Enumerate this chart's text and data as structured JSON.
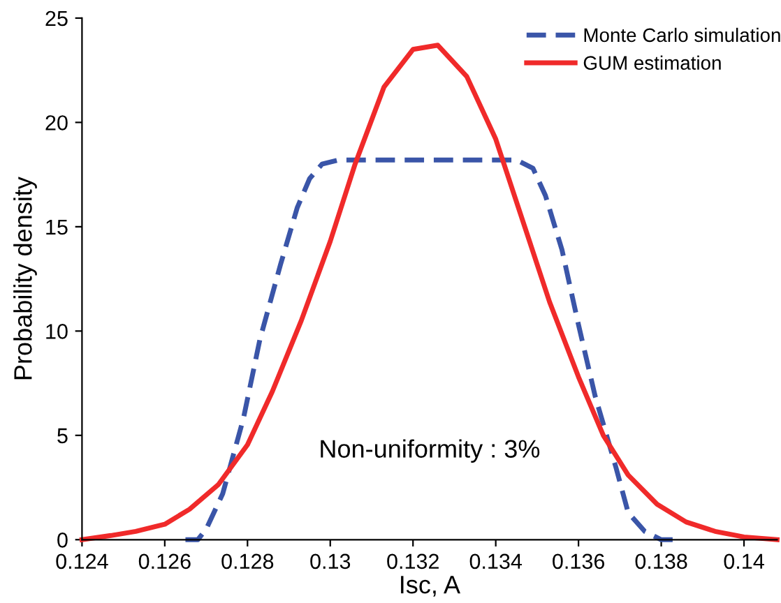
{
  "chart_data": {
    "type": "line",
    "xlabel": "Isc, A",
    "ylabel": "Probability density",
    "xlim": [
      0.124,
      0.1408
    ],
    "xticks": [
      {
        "value": 0.124,
        "label": "0.124"
      },
      {
        "value": 0.126,
        "label": "0.126"
      },
      {
        "value": 0.128,
        "label": "0.128"
      },
      {
        "value": 0.13,
        "label": "0.13"
      },
      {
        "value": 0.132,
        "label": "0.132"
      },
      {
        "value": 0.134,
        "label": "0.134"
      },
      {
        "value": 0.136,
        "label": "0.136"
      },
      {
        "value": 0.138,
        "label": "0.138"
      },
      {
        "value": 0.14,
        "label": "0.14"
      }
    ],
    "ylim": [
      0,
      25
    ],
    "yticks": [
      0,
      5,
      10,
      15,
      20,
      25
    ],
    "grid": false,
    "legend": "top right",
    "annotations": [
      "Non-uniformity : 3%"
    ],
    "series": [
      {
        "name": "Monte Carlo simulation",
        "color": "#3a55a8",
        "line_style": "dashed",
        "x": [
          0.1265,
          0.1268,
          0.127,
          0.1274,
          0.1279,
          0.1283,
          0.1288,
          0.1292,
          0.1295,
          0.1298,
          0.1302,
          0.1345,
          0.1349,
          0.1352,
          0.1356,
          0.136,
          0.1364,
          0.1369,
          0.1372,
          0.1376,
          0.138,
          0.1383
        ],
        "values": [
          0,
          0,
          0.5,
          2.2,
          5.8,
          9.6,
          13.2,
          15.9,
          17.3,
          18.0,
          18.2,
          18.2,
          17.8,
          16.5,
          13.9,
          10.3,
          6.9,
          3.5,
          1.3,
          0.4,
          0,
          0
        ]
      },
      {
        "name": "GUM estimation",
        "color": "#f02a2a",
        "line_style": "solid",
        "x": [
          0.124,
          0.1247,
          0.1253,
          0.126,
          0.1266,
          0.1273,
          0.128,
          0.1286,
          0.1293,
          0.13,
          0.1306,
          0.1313,
          0.132,
          0.1326,
          0.1333,
          0.134,
          0.1347,
          0.1353,
          0.136,
          0.1366,
          0.1372,
          0.1379,
          0.1386,
          0.1393,
          0.14,
          0.1408
        ],
        "values": [
          0,
          0.2,
          0.4,
          0.74,
          1.46,
          2.65,
          4.55,
          7.1,
          10.5,
          14.3,
          18.0,
          21.7,
          23.5,
          23.7,
          22.2,
          19.2,
          15.0,
          11.4,
          7.8,
          5.0,
          3.1,
          1.7,
          0.85,
          0.4,
          0.13,
          0
        ]
      }
    ]
  }
}
